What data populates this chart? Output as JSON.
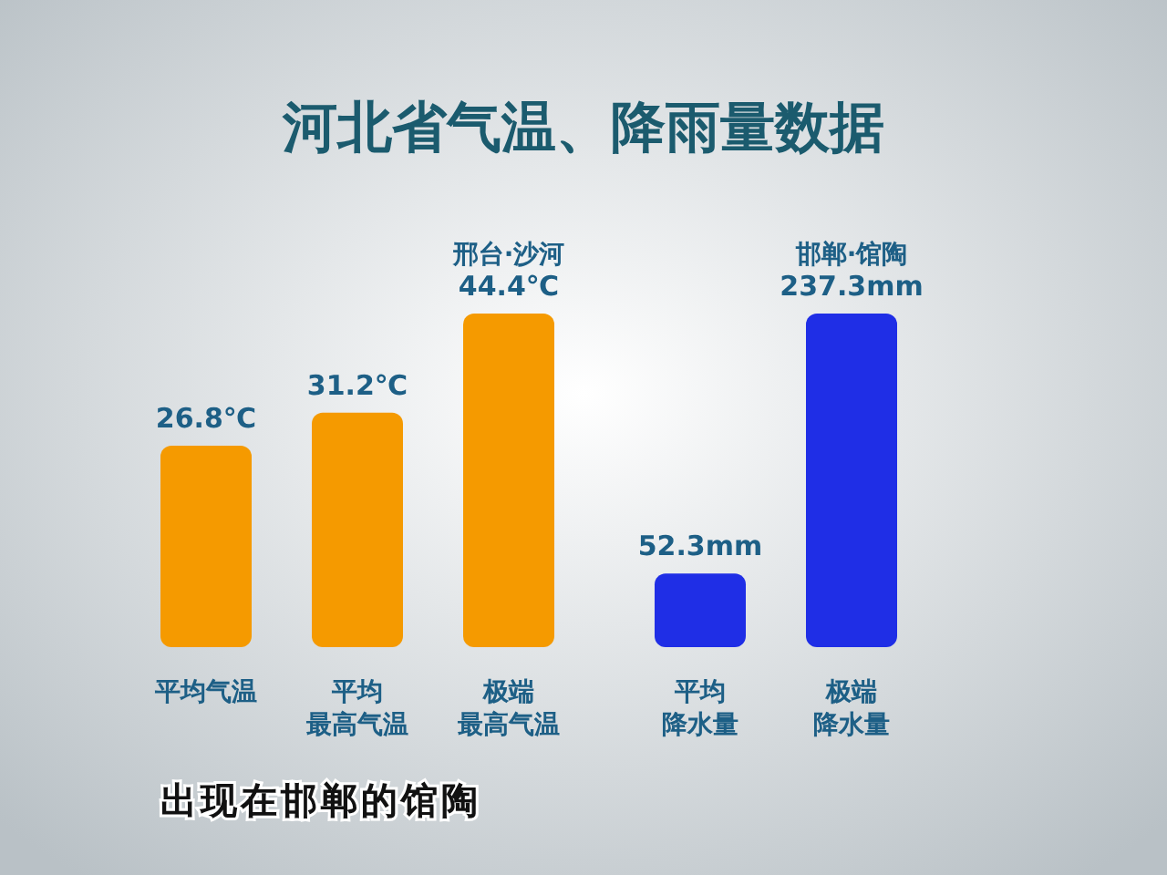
{
  "chart_data": {
    "type": "bar",
    "title": "河北省气温、降雨量数据",
    "categories": [
      "平均气温",
      "平均最高气温",
      "极端最高气温",
      "平均降水量",
      "极端降水量"
    ],
    "series": [
      {
        "color": "#f59a00",
        "values": [
          26.8,
          31.2,
          44.4,
          null,
          null
        ],
        "value_labels": [
          "26.8℃",
          "31.2℃",
          "44.4℃",
          null,
          null
        ]
      },
      {
        "color": "#1f2ee6",
        "axis": "y2",
        "values": [
          null,
          null,
          null,
          52.3,
          237.3
        ],
        "value_labels": [
          null,
          null,
          null,
          "52.3mm",
          "237.3mm"
        ]
      }
    ],
    "annotations": [
      {
        "text": "邢台·沙河",
        "x": "极端最高气温",
        "y": 44.4
      },
      "邯郸·馆陶",
      "出现在邯郸的馆陶"
    ]
  }
}
